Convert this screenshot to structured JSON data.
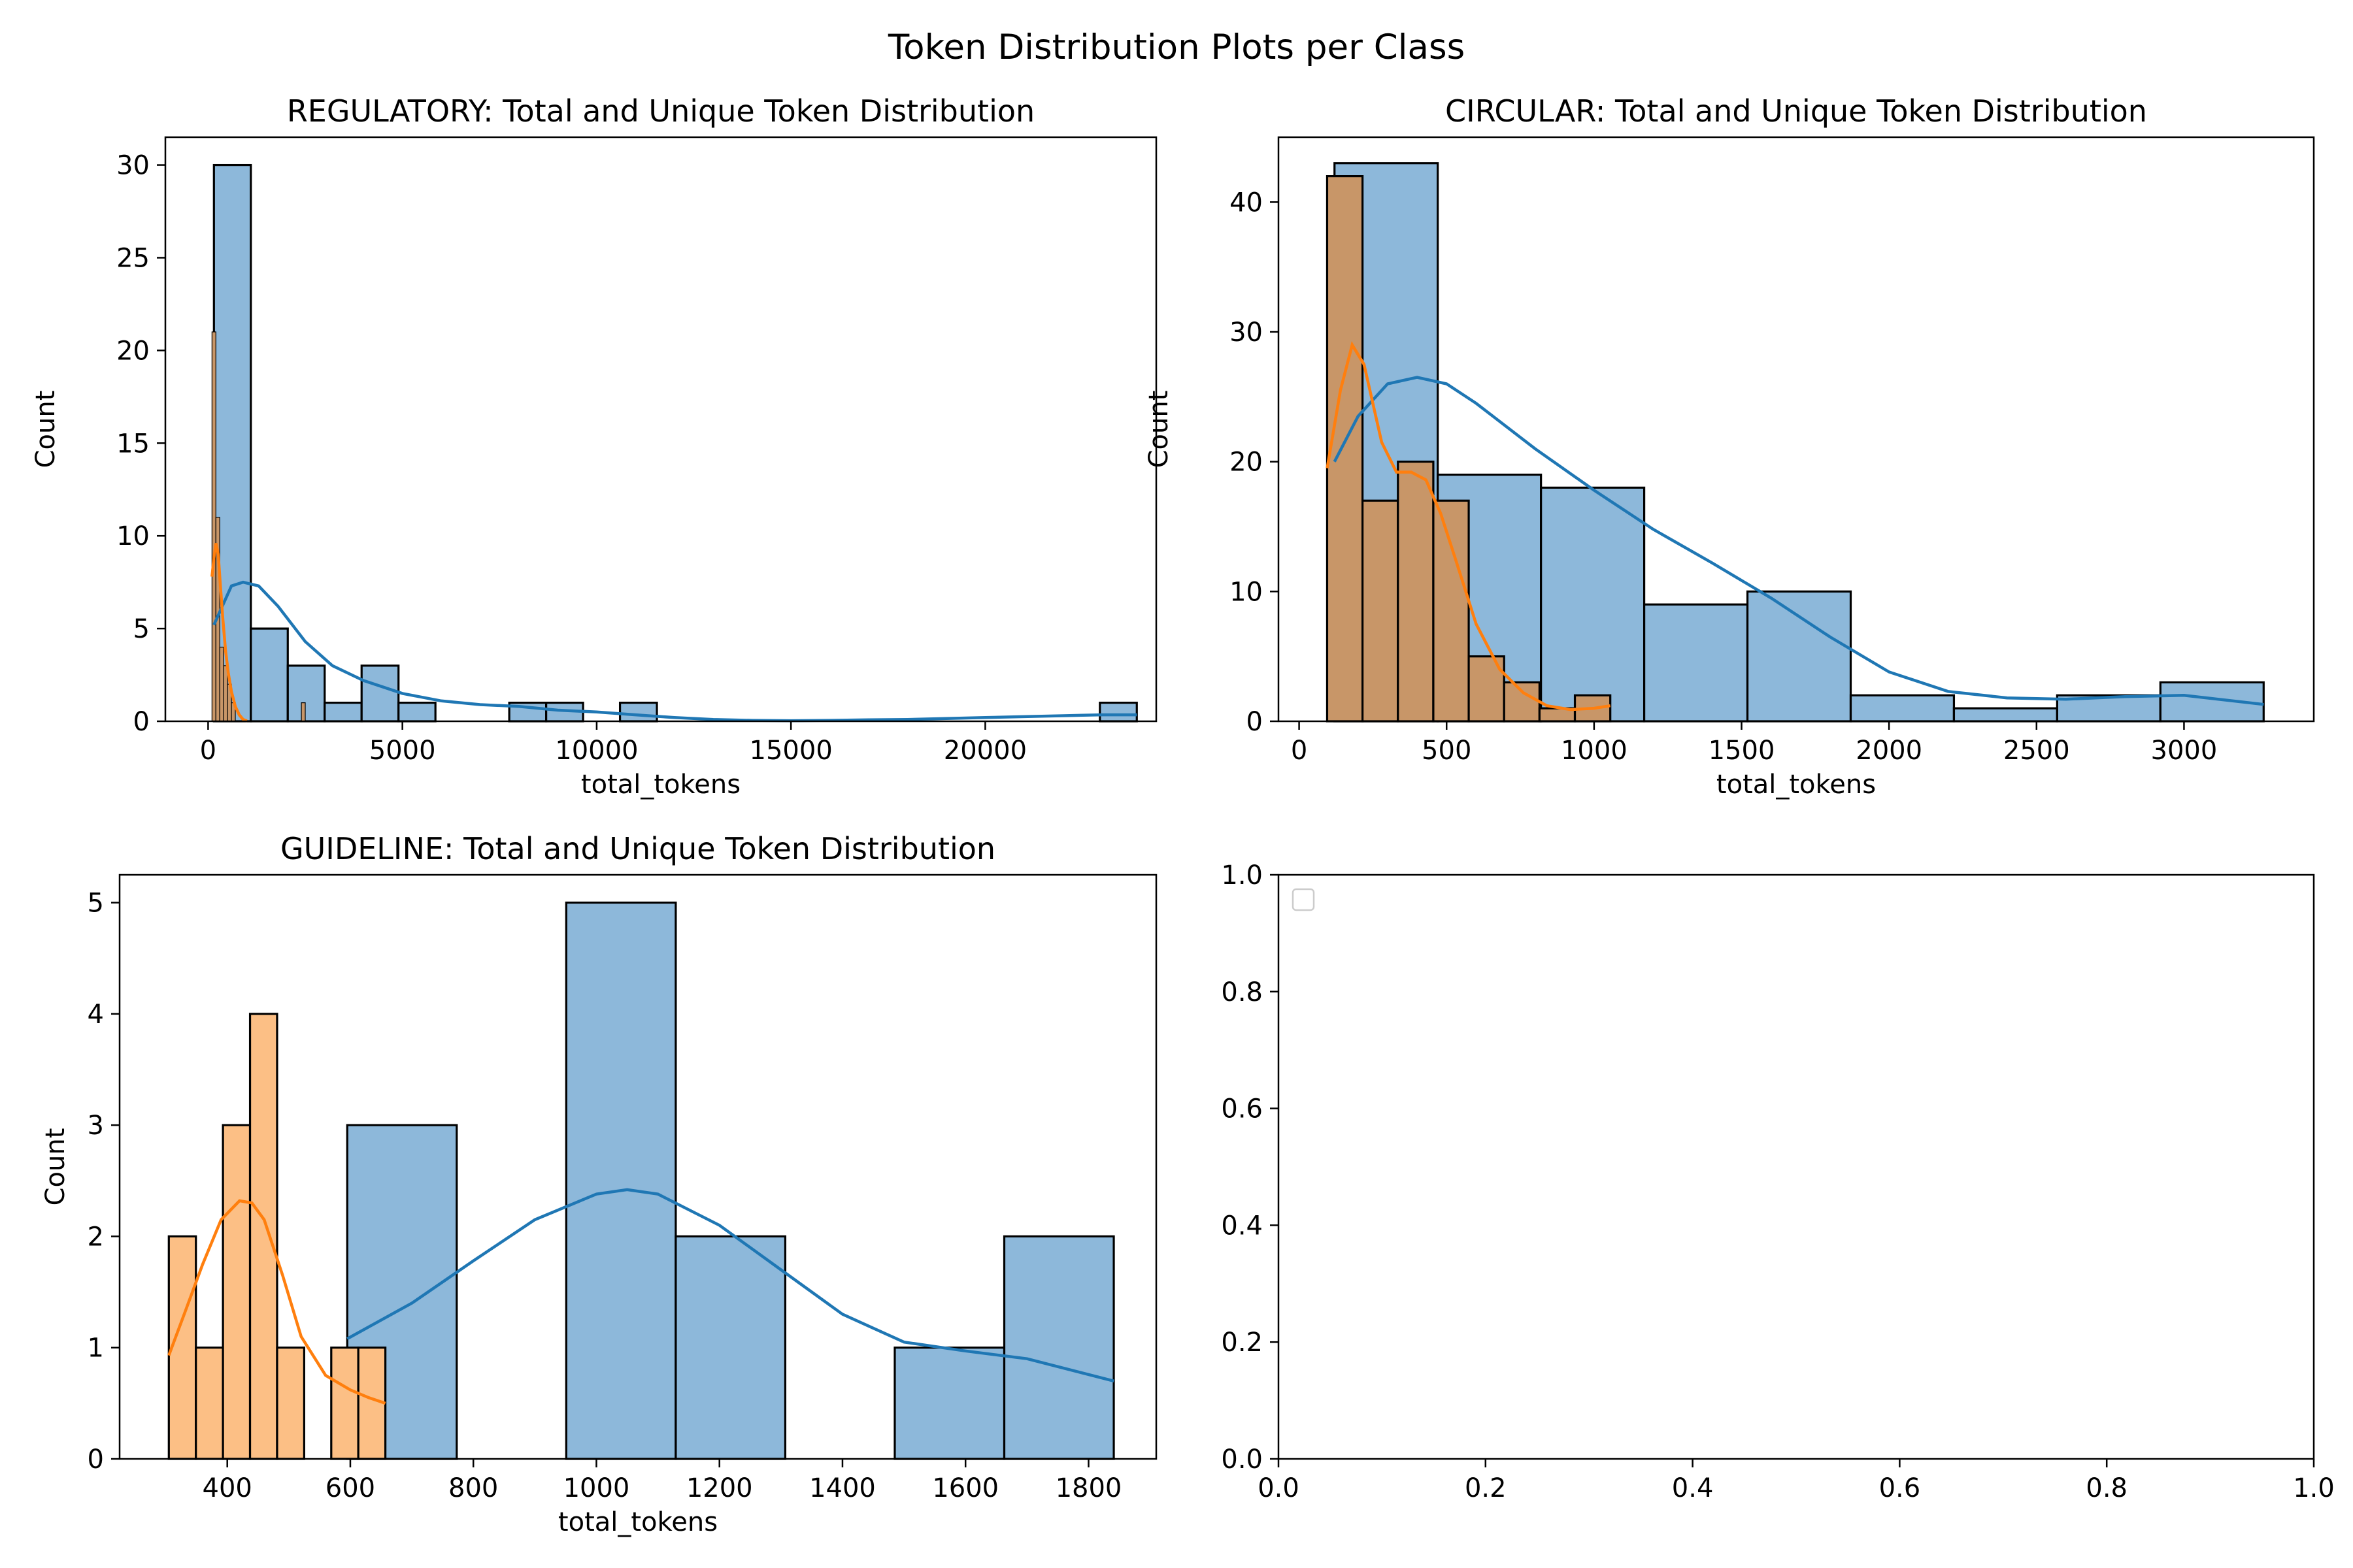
{
  "figure": {
    "title": "Token Distribution Plots per Class"
  },
  "colors": {
    "total_fill": "#8db8da",
    "total_line": "#1f77b4",
    "unique_fill": "#c89668",
    "unique_fill_alt": "#fcbf85",
    "unique_line": "#ff7f0e",
    "bar_edge": "#000000"
  },
  "chart_data": [
    {
      "type": "bar",
      "title": "REGULATORY: Total and Unique Token Distribution",
      "xlabel": "total_tokens",
      "ylabel": "Count",
      "xlim": [
        -1100,
        24400
      ],
      "ylim": [
        0,
        31.5
      ],
      "xticks": [
        0,
        5000,
        10000,
        15000,
        20000
      ],
      "xtick_labels": [
        "0",
        "5000",
        "10000",
        "15000",
        "20000"
      ],
      "yticks": [
        0,
        5,
        10,
        15,
        20,
        25,
        30
      ],
      "ytick_labels": [
        "0",
        "5",
        "10",
        "15",
        "20",
        "25",
        "30"
      ],
      "grid": false,
      "unique_fill": "brown",
      "total_bins": {
        "edges": [
          150,
          1100,
          2050,
          3000,
          3950,
          4900,
          5850,
          6800,
          7750,
          8700,
          9650,
          10600,
          11550,
          12500,
          13450,
          14400,
          15350,
          16300,
          17250,
          18200,
          19150,
          20100,
          21050,
          22000,
          22950,
          23900
        ],
        "counts": [
          30,
          5,
          3,
          1,
          3,
          1,
          0,
          0,
          1,
          1,
          0,
          1,
          0,
          0,
          0,
          0,
          0,
          0,
          0,
          0,
          0,
          0,
          0,
          0,
          1
        ]
      },
      "unique_bins": {
        "edges": [
          100,
          200,
          300,
          400,
          500,
          600,
          700,
          800,
          900,
          1000,
          1100,
          1200,
          1300,
          1400,
          1500,
          1600,
          1700,
          1800,
          1900,
          2000,
          2100,
          2200,
          2300,
          2400,
          2500,
          2600
        ],
        "counts": [
          21,
          11,
          4,
          3,
          2,
          1,
          0,
          0,
          0,
          0,
          0,
          0,
          0,
          0,
          0,
          0,
          0,
          0,
          0,
          0,
          0,
          0,
          0,
          1,
          0
        ]
      },
      "total_kde": {
        "x": [
          150,
          600,
          900,
          1300,
          1800,
          2500,
          3200,
          4000,
          5000,
          6000,
          7000,
          8000,
          9000,
          10000,
          11000,
          12000,
          13000,
          14000,
          15000,
          16000,
          17000,
          18000,
          19000,
          20000,
          21000,
          22000,
          23000,
          23900
        ],
        "y": [
          5.2,
          7.3,
          7.5,
          7.3,
          6.2,
          4.3,
          3.0,
          2.2,
          1.5,
          1.1,
          0.9,
          0.8,
          0.6,
          0.5,
          0.35,
          0.2,
          0.1,
          0.05,
          0.03,
          0.05,
          0.08,
          0.1,
          0.15,
          0.2,
          0.25,
          0.3,
          0.35,
          0.35
        ]
      },
      "unique_kde": {
        "x": [
          100,
          150,
          200,
          260,
          320,
          380,
          450,
          520,
          600,
          700,
          800,
          900,
          1000
        ],
        "y": [
          7.8,
          8.8,
          9.6,
          9.0,
          7.2,
          5.5,
          3.8,
          2.6,
          1.6,
          0.8,
          0.35,
          0.1,
          0.02
        ]
      }
    },
    {
      "type": "bar",
      "title": "CIRCULAR: Total and Unique Token Distribution",
      "xlabel": "total_tokens",
      "ylabel": "Count",
      "xlim": [
        -70,
        3440
      ],
      "ylim": [
        0,
        45
      ],
      "xticks": [
        0,
        500,
        1000,
        1500,
        2000,
        2500,
        3000
      ],
      "xtick_labels": [
        "0",
        "500",
        "1000",
        "1500",
        "2000",
        "2500",
        "3000"
      ],
      "yticks": [
        0,
        10,
        20,
        30,
        40
      ],
      "ytick_labels": [
        "0",
        "10",
        "20",
        "30",
        "40"
      ],
      "grid": false,
      "unique_fill": "brown",
      "total_bins": {
        "edges": [
          120,
          470,
          820,
          1170,
          1520,
          1870,
          2220,
          2570,
          2920,
          3270
        ],
        "counts": [
          43,
          19,
          18,
          9,
          10,
          2,
          1,
          2,
          3
        ]
      },
      "unique_bins": {
        "edges": [
          95,
          215,
          335,
          455,
          575,
          695,
          815,
          935,
          1055
        ],
        "counts": [
          42,
          17,
          20,
          17,
          5,
          3,
          1,
          2
        ]
      },
      "total_kde": {
        "x": [
          120,
          200,
          300,
          400,
          500,
          600,
          800,
          1000,
          1200,
          1400,
          1600,
          1800,
          2000,
          2200,
          2400,
          2600,
          2800,
          3000,
          3270
        ],
        "y": [
          20.0,
          23.5,
          26.0,
          26.5,
          26.0,
          24.5,
          21.0,
          17.8,
          14.8,
          12.2,
          9.5,
          6.5,
          3.8,
          2.3,
          1.8,
          1.7,
          1.9,
          2.0,
          1.3
        ]
      },
      "unique_kde": {
        "x": [
          95,
          140,
          180,
          220,
          280,
          330,
          380,
          430,
          480,
          530,
          600,
          680,
          760,
          840,
          920,
          1000,
          1055
        ],
        "y": [
          19.5,
          25.5,
          29.0,
          27.5,
          21.5,
          19.2,
          19.2,
          18.6,
          16.0,
          12.5,
          7.5,
          4.0,
          2.2,
          1.2,
          0.9,
          1.0,
          1.2
        ]
      }
    },
    {
      "type": "bar",
      "title": "GUIDELINE: Total and Unique Token Distribution",
      "xlabel": "total_tokens",
      "ylabel": "Count",
      "xlim": [
        225,
        1910
      ],
      "ylim": [
        0,
        5.25
      ],
      "xticks": [
        400,
        600,
        800,
        1000,
        1200,
        1400,
        1600,
        1800
      ],
      "xtick_labels": [
        "400",
        "600",
        "800",
        "1000",
        "1200",
        "1400",
        "1600",
        "1800"
      ],
      "yticks": [
        0,
        1,
        2,
        3,
        4,
        5
      ],
      "ytick_labels": [
        "0",
        "1",
        "2",
        "3",
        "4",
        "5"
      ],
      "grid": false,
      "unique_fill": "peach",
      "total_bins": {
        "edges": [
          595,
          773,
          951,
          1129,
          1307,
          1485,
          1663,
          1841
        ],
        "counts": [
          3,
          0,
          5,
          2,
          0,
          1,
          2
        ]
      },
      "unique_bins": {
        "edges": [
          305,
          349,
          393,
          437,
          481,
          525,
          569,
          613,
          657
        ],
        "counts": [
          2,
          1,
          3,
          4,
          1,
          0,
          1,
          1
        ]
      },
      "total_kde": {
        "x": [
          595,
          700,
          800,
          900,
          1000,
          1050,
          1100,
          1200,
          1300,
          1400,
          1500,
          1600,
          1700,
          1841
        ],
        "y": [
          1.08,
          1.4,
          1.78,
          2.15,
          2.38,
          2.42,
          2.38,
          2.1,
          1.7,
          1.3,
          1.05,
          0.97,
          0.9,
          0.7
        ]
      },
      "unique_kde": {
        "x": [
          305,
          330,
          360,
          390,
          420,
          440,
          460,
          490,
          520,
          560,
          600,
          630,
          657
        ],
        "y": [
          0.93,
          1.3,
          1.75,
          2.15,
          2.32,
          2.3,
          2.15,
          1.65,
          1.1,
          0.75,
          0.62,
          0.55,
          0.5
        ]
      }
    },
    {
      "type": "line",
      "title": "",
      "xlabel": "",
      "ylabel": "",
      "xlim": [
        0,
        1
      ],
      "ylim": [
        0,
        1
      ],
      "xticks": [
        0,
        0.2,
        0.4,
        0.6,
        0.8,
        1.0
      ],
      "xtick_labels": [
        "0.0",
        "0.2",
        "0.4",
        "0.6",
        "0.8",
        "1.0"
      ],
      "yticks": [
        0,
        0.2,
        0.4,
        0.6,
        0.8,
        1.0
      ],
      "ytick_labels": [
        "0.0",
        "0.2",
        "0.4",
        "0.6",
        "0.8",
        "1.0"
      ],
      "grid": false,
      "legend": "top-left",
      "empty": true
    }
  ]
}
